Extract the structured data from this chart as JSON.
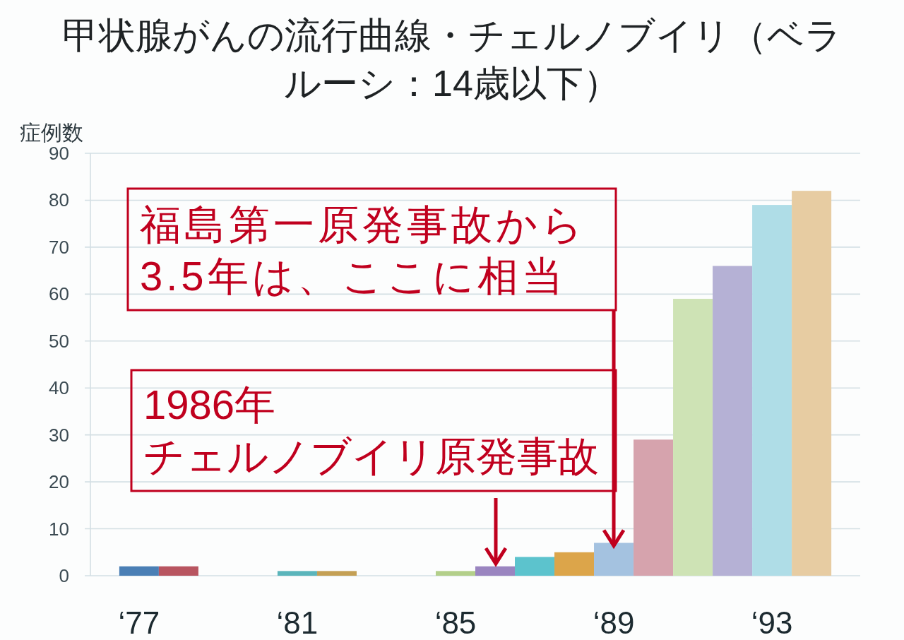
{
  "chart_data": {
    "type": "bar",
    "title": "甲状腺がんの流行曲線・チェルノブイリ（ベラルーシ：14歳以下）",
    "ylabel": "症例数",
    "categories": [
      "‘77",
      null,
      null,
      null,
      "‘81",
      null,
      null,
      null,
      "‘85",
      null,
      null,
      null,
      "‘89",
      null,
      null,
      null,
      "‘93",
      null
    ],
    "values": [
      2,
      2,
      0,
      0,
      1,
      1,
      0,
      0,
      1,
      2,
      4,
      5,
      7,
      29,
      59,
      66,
      79,
      82
    ],
    "colors": [
      "#4a7fb5",
      "#b85560",
      null,
      null,
      "#5bb5bb",
      "#c4a055",
      null,
      null,
      "#b3cf8a",
      "#9a85c0",
      "#5cc3cd",
      "#dca54a",
      "#a4c2e0",
      "#d6a3ad",
      "#cee3b5",
      "#b5b1d5",
      "#afdde7",
      "#e7cca2"
    ],
    "ylim": [
      0,
      90
    ],
    "yticks": [
      0,
      10,
      20,
      30,
      40,
      50,
      60,
      70,
      80,
      90
    ],
    "grid": "y",
    "annotations": [
      {
        "text": "福島第一原発事故から3.5年は、ここに相当",
        "x": "‘89",
        "y": 7
      },
      "1986年",
      "チェルノブイリ原発事故"
    ]
  }
}
